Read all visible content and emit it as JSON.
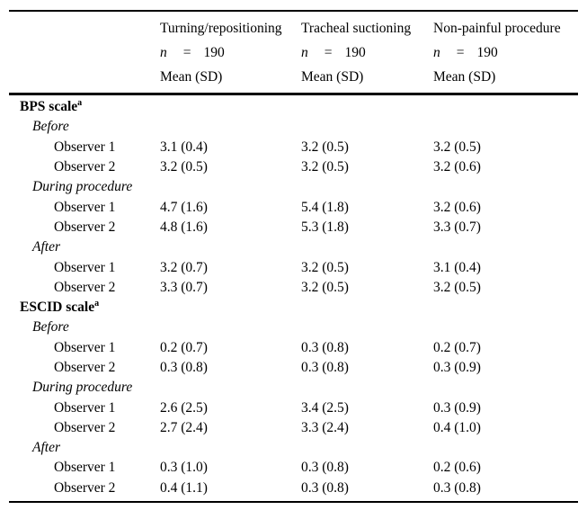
{
  "page": {
    "background_color": "#ffffff",
    "text_color": "#000000",
    "rule_color": "#000000"
  },
  "table": {
    "header": {
      "row_label_column_title": "",
      "columns": [
        {
          "title": "Turning/repositioning",
          "n_symbol": "n",
          "equals": "=",
          "n_value": "190",
          "stat_label": "Mean (SD)"
        },
        {
          "title": "Tracheal suctioning",
          "n_symbol": "n",
          "equals": "=",
          "n_value": "190",
          "stat_label": "Mean (SD)"
        },
        {
          "title": "Non-painful procedure",
          "n_symbol": "n",
          "equals": "=",
          "n_value": "190",
          "stat_label": "Mean (SD)"
        }
      ]
    },
    "rows": [
      {
        "type": "scale",
        "label": "BPS scale",
        "sup": "a",
        "values": [
          "",
          "",
          ""
        ]
      },
      {
        "type": "phase",
        "label": "Before",
        "values": [
          "",
          "",
          ""
        ]
      },
      {
        "type": "observer",
        "label": "Observer 1",
        "values": [
          "3.1 (0.4)",
          "3.2 (0.5)",
          "3.2 (0.5)"
        ]
      },
      {
        "type": "observer",
        "label": "Observer 2",
        "values": [
          "3.2 (0.5)",
          "3.2 (0.5)",
          "3.2 (0.6)"
        ]
      },
      {
        "type": "phase",
        "label": "During procedure",
        "values": [
          "",
          "",
          ""
        ]
      },
      {
        "type": "observer",
        "label": "Observer 1",
        "values": [
          "4.7 (1.6)",
          "5.4 (1.8)",
          "3.2 (0.6)"
        ]
      },
      {
        "type": "observer",
        "label": "Observer 2",
        "values": [
          "4.8 (1.6)",
          "5.3 (1.8)",
          "3.3 (0.7)"
        ]
      },
      {
        "type": "phase",
        "label": "After",
        "values": [
          "",
          "",
          ""
        ]
      },
      {
        "type": "observer",
        "label": "Observer 1",
        "values": [
          "3.2 (0.7)",
          "3.2 (0.5)",
          "3.1 (0.4)"
        ]
      },
      {
        "type": "observer",
        "label": "Observer 2",
        "values": [
          "3.3 (0.7)",
          "3.2 (0.5)",
          "3.2 (0.5)"
        ]
      },
      {
        "type": "scale",
        "label": "ESCID scale",
        "sup": "a",
        "values": [
          "",
          "",
          ""
        ]
      },
      {
        "type": "phase",
        "label": "Before",
        "values": [
          "",
          "",
          ""
        ]
      },
      {
        "type": "observer",
        "label": "Observer 1",
        "values": [
          "0.2 (0.7)",
          "0.3 (0.8)",
          "0.2 (0.7)"
        ]
      },
      {
        "type": "observer",
        "label": "Observer 2",
        "values": [
          "0.3 (0.8)",
          "0.3 (0.8)",
          "0.3 (0.9)"
        ]
      },
      {
        "type": "phase",
        "label": "During procedure",
        "values": [
          "",
          "",
          ""
        ]
      },
      {
        "type": "observer",
        "label": "Observer 1",
        "values": [
          "2.6 (2.5)",
          "3.4 (2.5)",
          "0.3 (0.9)"
        ]
      },
      {
        "type": "observer",
        "label": "Observer 2",
        "values": [
          "2.7 (2.4)",
          "3.3 (2.4)",
          "0.4 (1.0)"
        ]
      },
      {
        "type": "phase",
        "label": "After",
        "values": [
          "",
          "",
          ""
        ]
      },
      {
        "type": "observer",
        "label": "Observer 1",
        "values": [
          "0.3 (1.0)",
          "0.3 (0.8)",
          "0.2 (0.6)"
        ]
      },
      {
        "type": "observer",
        "label": "Observer 2",
        "values": [
          "0.4 (1.1)",
          "0.3 (0.8)",
          "0.3 (0.8)"
        ]
      }
    ]
  }
}
